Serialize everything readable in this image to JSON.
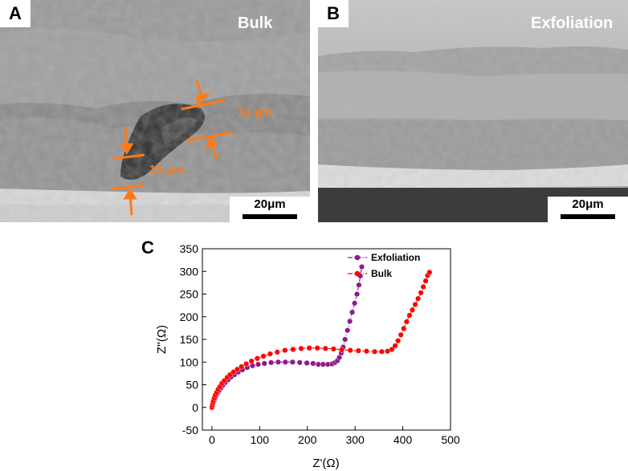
{
  "panel_a": {
    "letter": "A",
    "title": "Bulk",
    "scale_bar": "20μm",
    "annotations": {
      "upper": "14 μm",
      "lower": "15 μm"
    }
  },
  "panel_b": {
    "letter": "B",
    "title": "Exfoliation",
    "scale_bar": "20μm"
  },
  "panel_c": {
    "letter": "C"
  },
  "colors": {
    "annotation": "#ff7a1a",
    "exfoliation": "#8e1b8e",
    "bulk": "#ff0000"
  },
  "chart_data": {
    "type": "scatter",
    "xlabel": "Z'(Ω)",
    "ylabel": "Z''(Ω)",
    "xlim": [
      -20,
      500
    ],
    "ylim": [
      -50,
      350
    ],
    "xticks": [
      "0",
      "100",
      "200",
      "300",
      "400",
      "500"
    ],
    "yticks": [
      "-50",
      "0",
      "50",
      "100",
      "150",
      "200",
      "250",
      "300",
      "350"
    ],
    "legend_position": "top-right",
    "series": [
      {
        "name": "Exfoliation",
        "color": "#8e1b8e",
        "line": "dash-dot",
        "x": [
          0,
          1,
          2,
          3,
          5,
          7,
          9,
          12,
          15,
          19,
          23,
          28,
          34,
          40,
          47,
          55,
          64,
          74,
          85,
          97,
          110,
          124,
          139,
          154,
          169,
          184,
          199,
          212,
          223,
          233,
          243,
          252,
          258,
          263,
          267,
          271,
          275,
          279,
          284,
          289,
          294,
          299,
          304,
          308,
          311,
          314
        ],
        "y": [
          0,
          4,
          8,
          12,
          17,
          22,
          27,
          32,
          37,
          43,
          49,
          55,
          61,
          67,
          72,
          78,
          83,
          88,
          92,
          95,
          97,
          99,
          100,
          100,
          100,
          99,
          98,
          97,
          95,
          95,
          95,
          96,
          99,
          103,
          110,
          120,
          133,
          150,
          170,
          190,
          210,
          230,
          250,
          270,
          290,
          310
        ]
      },
      {
        "name": "Bulk",
        "color": "#ff0000",
        "line": "dash-dot",
        "x": [
          0,
          1,
          2,
          3,
          5,
          7,
          10,
          13,
          17,
          21,
          26,
          32,
          38,
          45,
          53,
          62,
          72,
          83,
          95,
          108,
          122,
          137,
          153,
          170,
          187,
          204,
          221,
          238,
          255,
          272,
          290,
          307,
          324,
          341,
          356,
          368,
          377,
          384,
          390,
          396,
          402,
          408,
          414,
          420,
          426,
          432,
          438,
          443,
          448,
          452,
          456
        ],
        "y": [
          0,
          5,
          10,
          15,
          21,
          27,
          33,
          40,
          46,
          53,
          59,
          66,
          72,
          78,
          84,
          90,
          96,
          102,
          108,
          113,
          118,
          122,
          126,
          128,
          130,
          131,
          131,
          130,
          129,
          127,
          126,
          125,
          124,
          123,
          123,
          124,
          128,
          136,
          147,
          160,
          174,
          189,
          203,
          215,
          227,
          240,
          253,
          266,
          279,
          291,
          298
        ]
      }
    ]
  }
}
